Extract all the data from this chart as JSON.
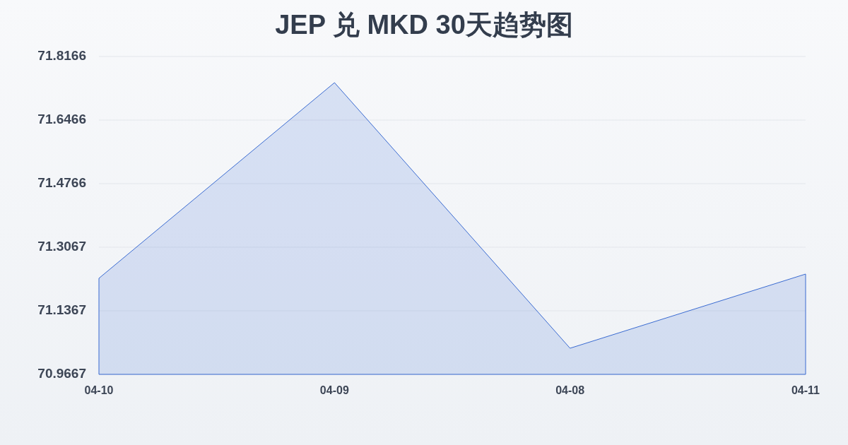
{
  "chart_data": {
    "type": "area",
    "title": "JEP 兑 MKD 30天趋势图",
    "categories": [
      "04-10",
      "04-09",
      "04-08",
      "04-11"
    ],
    "series": [
      {
        "color": "#3a6bd1",
        "values": [
          71.2236,
          71.7467,
          71.0366,
          71.2349
        ]
      }
    ],
    "ylim": [
      70.9667,
      71.8166
    ],
    "yticks": [
      70.9667,
      71.1367,
      71.3067,
      71.4766,
      71.6466,
      71.8166
    ],
    "grid": "y"
  }
}
